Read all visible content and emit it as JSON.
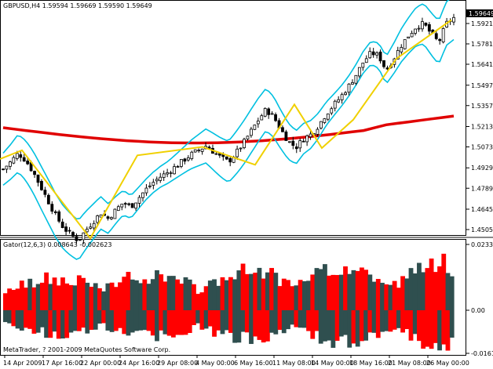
{
  "main_panel": {
    "header": "GBPUSD,H4  1.59594 1.59669 1.59590 1.59649",
    "price_ticks": [
      "1.59210",
      "1.57810",
      "1.56410",
      "1.54970",
      "1.53570",
      "1.52130",
      "1.50730",
      "1.49290",
      "1.47890",
      "1.46450",
      "1.45050"
    ],
    "current_price_label": "1.59649",
    "colors": {
      "bull": "#ffffff",
      "bear": "#000000",
      "bands": "#00c0e0",
      "zigzag": "#f0d000",
      "ma": "#e00000",
      "grid": "#bbbbbb"
    }
  },
  "indicator_panel": {
    "header": "Gator(12,6,3) 0.008643 -0.002623",
    "ticks": [
      "0.023324",
      "0.00",
      "-0.01617"
    ],
    "copyright": "MetaTrader, ? 2001-2009 MetaQuotes Software Corp.",
    "colors": {
      "up": "#ff0000",
      "down": "#2f4f4f"
    }
  },
  "time_axis": {
    "labels": [
      "14 Apr 2009",
      "17 Apr 16:00",
      "22 Apr 00:00",
      "24 Apr 16:00",
      "29 Apr 08:00",
      "4 May 00:00",
      "6 May 16:00",
      "11 May 08:00",
      "14 May 00:00",
      "18 May 16:00",
      "21 May 08:00",
      "26 May 00:00"
    ]
  },
  "chart_data": [
    {
      "type": "candlestick",
      "title": "GBPUSD,H4",
      "ylim": [
        1.4435,
        1.603
      ],
      "ohlc_last": {
        "open": 1.59594,
        "high": 1.59669,
        "low": 1.5959,
        "close": 1.59649
      },
      "close_path": [
        1.492,
        1.497,
        1.503,
        1.498,
        1.49,
        1.48,
        1.47,
        1.46,
        1.452,
        1.447,
        1.443,
        1.45,
        1.456,
        1.462,
        1.458,
        1.464,
        1.469,
        1.466,
        1.472,
        1.478,
        1.483,
        1.487,
        1.49,
        1.494,
        1.498,
        1.502,
        1.505,
        1.508,
        1.504,
        1.5,
        1.497,
        1.503,
        1.51,
        1.518,
        1.526,
        1.533,
        1.528,
        1.519,
        1.511,
        1.507,
        1.513,
        1.516,
        1.522,
        1.53,
        1.536,
        1.542,
        1.549,
        1.557,
        1.566,
        1.572,
        1.57,
        1.56,
        1.568,
        1.577,
        1.584,
        1.59,
        1.592,
        1.585,
        1.579,
        1.592,
        1.596
      ]
    },
    {
      "type": "bar",
      "title": "Gator(12,6,3)",
      "values_shown": [
        0.008643,
        -0.002623
      ],
      "ylim": [
        -0.01617,
        0.023324
      ]
    }
  ]
}
